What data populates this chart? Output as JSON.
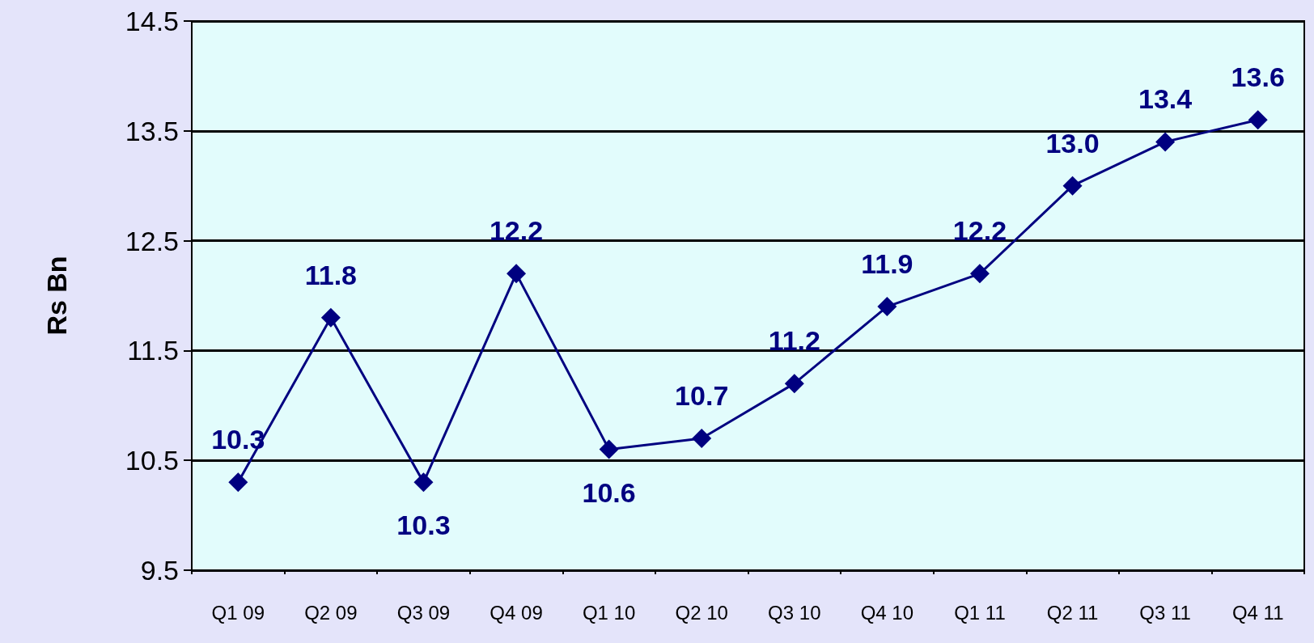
{
  "chart_data": {
    "type": "line",
    "ylabel": "Rs Bn",
    "categories": [
      "Q1 09",
      "Q2 09",
      "Q3 09",
      "Q4 09",
      "Q1 10",
      "Q2 10",
      "Q3 10",
      "Q4 10",
      "Q1 11",
      "Q2 11",
      "Q3 11",
      "Q4 11"
    ],
    "series": [
      {
        "color": "#000080",
        "values": [
          10.3,
          11.8,
          10.3,
          12.2,
          10.6,
          10.7,
          11.2,
          11.9,
          12.2,
          13.0,
          13.4,
          13.6
        ],
        "value_labels": [
          "10.3",
          "11.8",
          "10.3",
          "12.2",
          "10.6",
          "10.7",
          "11.2",
          "11.9",
          "12.2",
          "13.0",
          "13.4",
          "13.6"
        ]
      }
    ],
    "ylim": [
      9.5,
      14.5
    ],
    "yticks": [
      9.5,
      10.5,
      11.5,
      12.5,
      13.5,
      14.5
    ],
    "grid": "y",
    "marker": "diamond",
    "line_style": "solid"
  }
}
